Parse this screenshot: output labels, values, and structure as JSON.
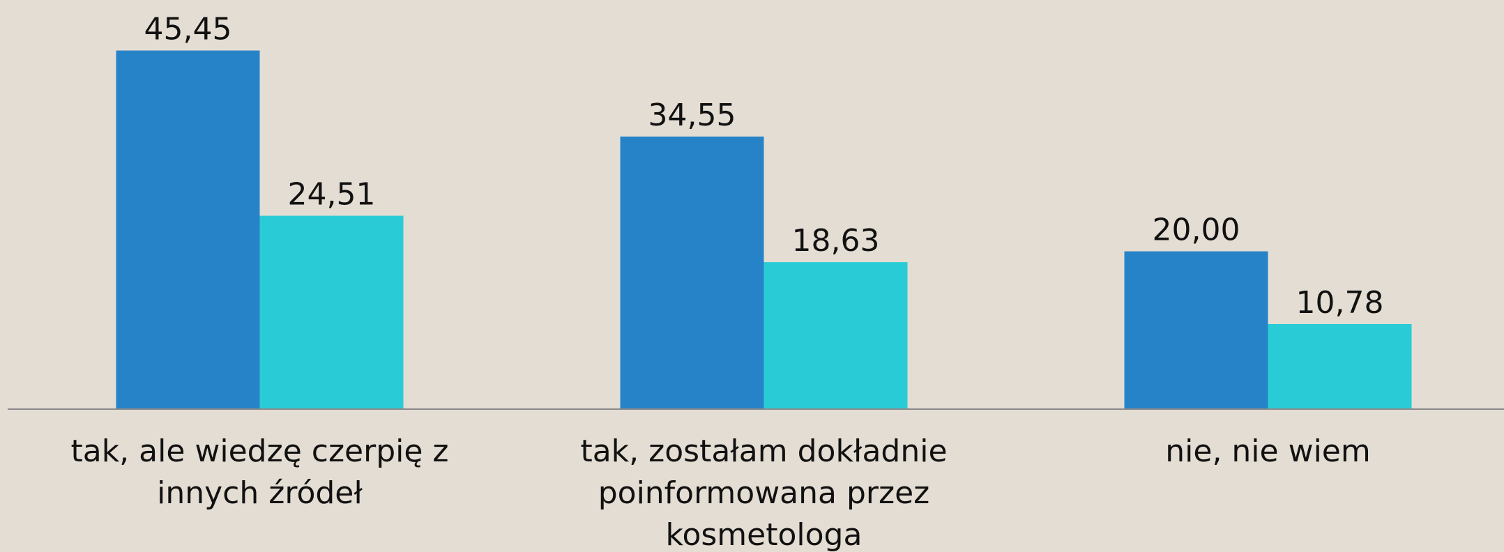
{
  "chart_data": {
    "type": "bar",
    "categories": [
      "tak, ale wiedzę czerpię z innych źródeł",
      "tak, zostałam dokładnie poinformowana przez kosmetologa",
      "nie, nie wiem"
    ],
    "series": [
      {
        "color": "#2783c8",
        "values": [
          45.45,
          34.55,
          20.0
        ],
        "value_labels": [
          "45,45",
          "34,55",
          "20,00"
        ]
      },
      {
        "color": "#29ccd6",
        "values": [
          24.51,
          18.63,
          10.78
        ],
        "value_labels": [
          "24,51",
          "18,63",
          "10,78"
        ]
      }
    ],
    "ylim": [
      0,
      50
    ]
  }
}
